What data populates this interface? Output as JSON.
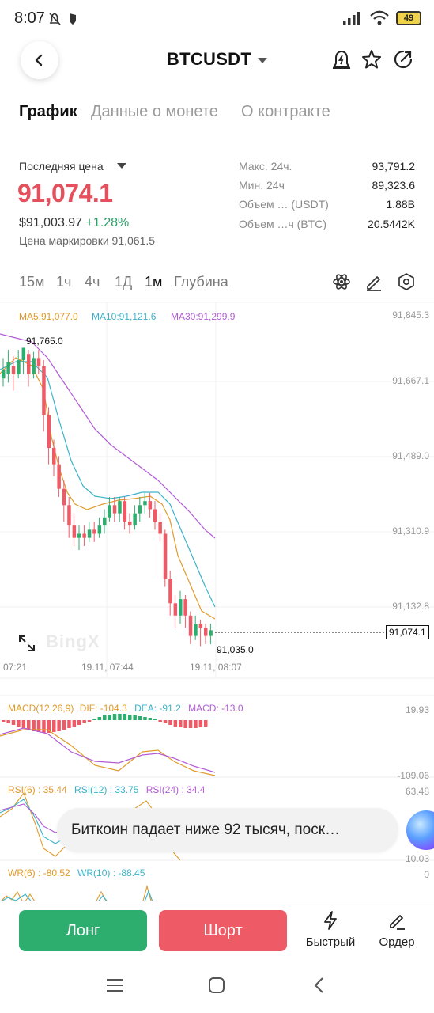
{
  "status_bar": {
    "time": "8:07",
    "battery": "49"
  },
  "header": {
    "pair": "BTCUSDT"
  },
  "tabs": [
    {
      "label": "График"
    },
    {
      "label": "Данные о монете"
    },
    {
      "label": "О контракте"
    }
  ],
  "price": {
    "last_label": "Последняя цена",
    "last_price": "91,074.1",
    "usd_price": "$91,003.97",
    "change_pct": "+1.28%",
    "mark_price": "Цена маркировки 91,061.5",
    "price_color": "#e4515d",
    "up_color": "#27a367"
  },
  "stats": [
    {
      "label": "Макс. 24ч.",
      "value": "93,791.2"
    },
    {
      "label": "Мин. 24ч",
      "value": "89,323.6"
    },
    {
      "label": "Объем … (USDT)",
      "value": "1.88B"
    },
    {
      "label": "Объем …ч (BTC)",
      "value": "20.5442K"
    }
  ],
  "timeframes": [
    {
      "label": "15м",
      "active": false
    },
    {
      "label": "1ч",
      "active": false
    },
    {
      "label": "4ч",
      "active": false
    },
    {
      "label": "1Д",
      "active": false
    },
    {
      "label": "1м",
      "active": true
    },
    {
      "label": "Глубина",
      "active": false
    }
  ],
  "chart": {
    "ma5": "MA5:91,077.0",
    "ma10": "MA10:91,121.6",
    "ma30": "MA30:91,299.9",
    "ma5_color": "#e09a2a",
    "ma10_color": "#3bb3c9",
    "ma30_color": "#b25bd6",
    "price_axis": [
      "91,845.3",
      "91,667.1",
      "91,489.0",
      "91,310.9",
      "91,132.8"
    ],
    "high_annotation": "91,765.0",
    "low_annotation": "91,035.0",
    "current_price": "91,074.1",
    "time_axis": [
      "07:21",
      "19.11, 07:44",
      "19.11, 08:07"
    ],
    "watermark": "BingX"
  },
  "macd": {
    "title": "MACD(12,26,9)",
    "dif": "DIF: -104.3",
    "dea": "DEA: -91.2",
    "macd": "MACD: -13.0",
    "axis_top": "19.93",
    "axis_bottom": "-109.06"
  },
  "rsi": {
    "rsi6": "RSI(6) : 35.44",
    "rsi12": "RSI(12) : 33.75",
    "rsi24": "RSI(24) : 34.4",
    "axis_top": "63.48",
    "axis_bottom": "10.03"
  },
  "wr": {
    "wr6": "WR(6) : -80.52",
    "wr10": "WR(10) : -88.45",
    "axis_top": "0"
  },
  "news_toast": "Биткоин падает ниже 92 тысяч, поск…",
  "actions": {
    "long": "Лонг",
    "short": "Шорт",
    "quick": "Быстрый",
    "order": "Ордер"
  }
}
